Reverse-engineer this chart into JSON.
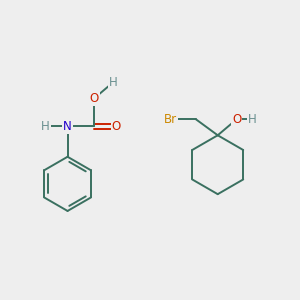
{
  "bg_color": "#eeeeee",
  "bond_color": "#3a7060",
  "bond_lw": 1.4,
  "atom_colors": {
    "H": "#6a9090",
    "O": "#cc2200",
    "N": "#2200cc",
    "Br": "#cc8800",
    "C": "#3a7060"
  },
  "font_size": 8.5,
  "fig_size": [
    3.0,
    3.0
  ],
  "dpi": 100
}
